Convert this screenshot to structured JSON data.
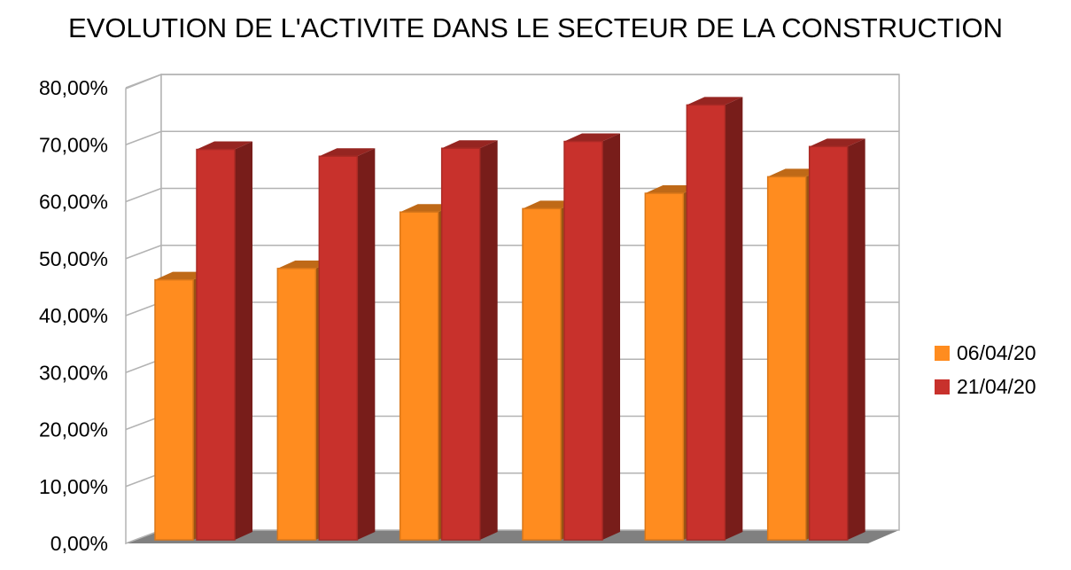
{
  "chart_data": {
    "type": "bar",
    "title": "EVOLUTION DE L'ACTIVITE DANS LE SECTEUR DE LA CONSTRUCTION",
    "categories": [
      "",
      "",
      "",
      "",
      "",
      ""
    ],
    "series": [
      {
        "name": "06/04/20",
        "color": "#ff8c1f",
        "values": [
          0.469,
          0.489,
          0.588,
          0.594,
          0.621,
          0.65
        ]
      },
      {
        "name": "21/04/20",
        "color": "#c8312c",
        "values": [
          0.698,
          0.686,
          0.7,
          0.712,
          0.776,
          0.703
        ]
      }
    ],
    "yticks": [
      "0,00%",
      "10,00%",
      "20,00%",
      "30,00%",
      "40,00%",
      "50,00%",
      "60,00%",
      "70,00%",
      "80,00%"
    ],
    "ylim": [
      0,
      0.8
    ],
    "xlabel": "",
    "ylabel": "",
    "grid": true,
    "legend_position": "right",
    "style": "3d-bar"
  }
}
